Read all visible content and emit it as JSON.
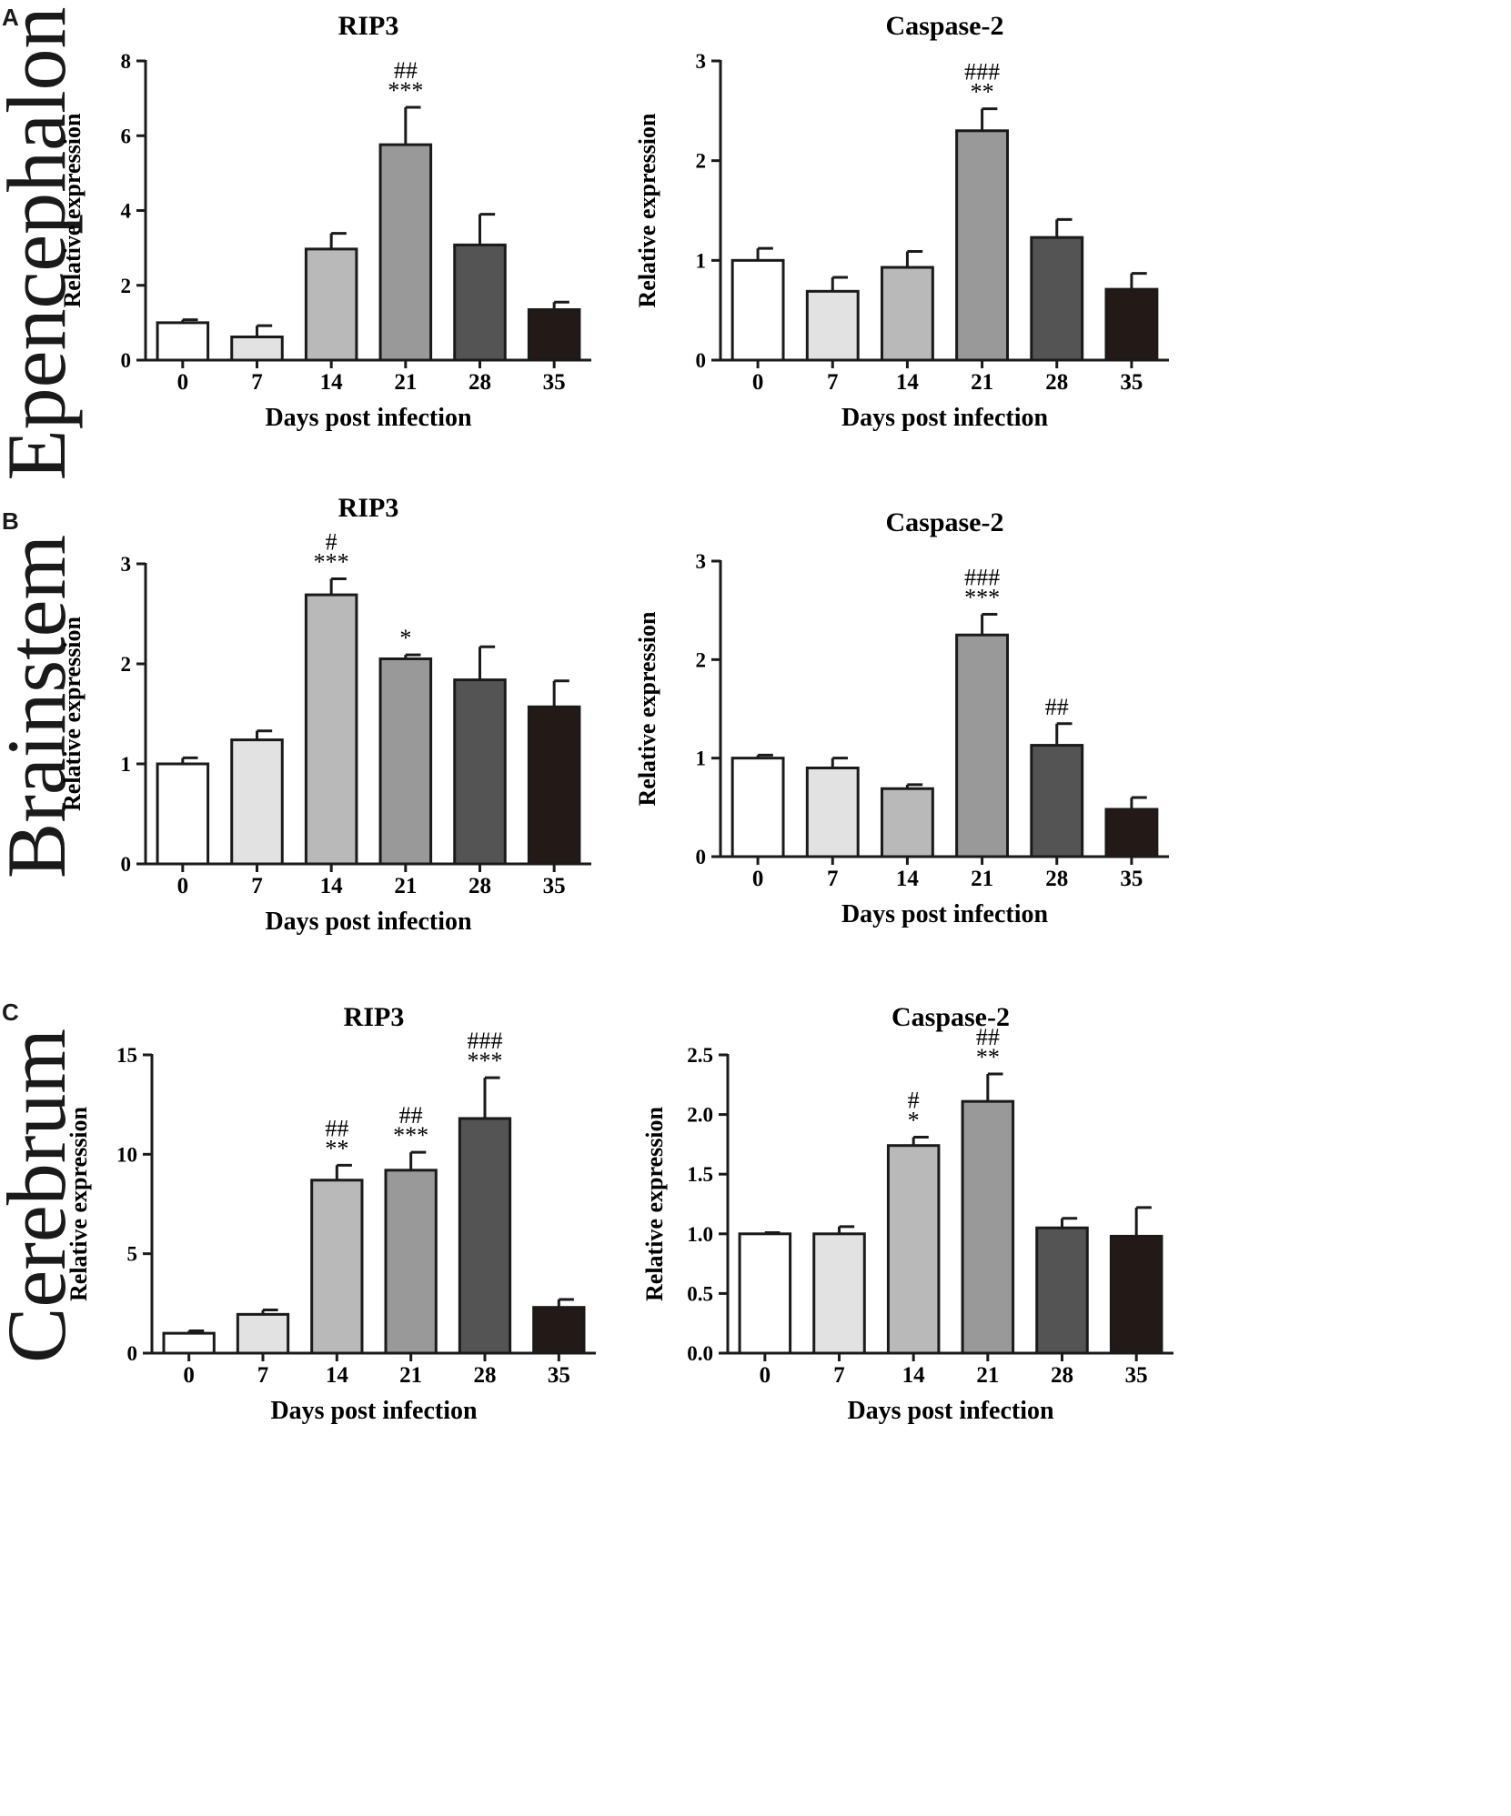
{
  "figure": {
    "panels": [
      {
        "letter": "A",
        "tissue": "Epencephalon"
      },
      {
        "letter": "B",
        "tissue": "Brainstem"
      },
      {
        "letter": "C",
        "tissue": "Cerebrum"
      }
    ]
  },
  "chart_data": [
    {
      "type": "bar",
      "panel": "A",
      "title": "RIP3",
      "xlabel": "Days post infection",
      "ylabel": "Relative expression",
      "categories": [
        "0",
        "7",
        "14",
        "21",
        "28",
        "35"
      ],
      "values": [
        1.0,
        0.62,
        2.97,
        5.76,
        3.08,
        1.35
      ],
      "errors": [
        0.08,
        0.3,
        0.42,
        1.0,
        0.82,
        0.2
      ],
      "annotations": [
        "",
        "",
        "",
        "##\n***",
        "",
        ""
      ],
      "bar_colors": [
        "#ffffff",
        "#e2e2e2",
        "#b9b9b9",
        "#999999",
        "#545454",
        "#231a18"
      ],
      "ylim": [
        0,
        8
      ],
      "yticks": [
        "0",
        "2",
        "4",
        "6",
        "8"
      ],
      "grid": false
    },
    {
      "type": "bar",
      "panel": "A",
      "title": "Caspase-2",
      "xlabel": "Days post infection",
      "ylabel": "Relative expression",
      "categories": [
        "0",
        "7",
        "14",
        "21",
        "28",
        "35"
      ],
      "values": [
        1.0,
        0.69,
        0.93,
        2.3,
        1.23,
        0.71
      ],
      "errors": [
        0.12,
        0.14,
        0.16,
        0.22,
        0.18,
        0.16
      ],
      "annotations": [
        "",
        "",
        "",
        "###\n**",
        "",
        ""
      ],
      "bar_colors": [
        "#ffffff",
        "#e2e2e2",
        "#b9b9b9",
        "#999999",
        "#545454",
        "#231a18"
      ],
      "ylim": [
        0,
        3
      ],
      "yticks": [
        "0",
        "1",
        "2",
        "3"
      ],
      "grid": false
    },
    {
      "type": "bar",
      "panel": "B",
      "title": "RIP3",
      "xlabel": "Days post infection",
      "ylabel": "Relative expression",
      "categories": [
        "0",
        "7",
        "14",
        "21",
        "28",
        "35"
      ],
      "values": [
        1.0,
        1.24,
        2.69,
        2.05,
        1.84,
        1.57
      ],
      "errors": [
        0.06,
        0.09,
        0.16,
        0.04,
        0.33,
        0.26
      ],
      "annotations": [
        "",
        "",
        "#\n***",
        "*",
        "",
        ""
      ],
      "bar_colors": [
        "#ffffff",
        "#e2e2e2",
        "#b9b9b9",
        "#999999",
        "#545454",
        "#231a18"
      ],
      "ylim": [
        0,
        3
      ],
      "yticks": [
        "0",
        "1",
        "2",
        "3"
      ],
      "grid": false
    },
    {
      "type": "bar",
      "panel": "B",
      "title": "Caspase-2",
      "xlabel": "Days post infection",
      "ylabel": "Relative expression",
      "categories": [
        "0",
        "7",
        "14",
        "21",
        "28",
        "35"
      ],
      "values": [
        1.0,
        0.9,
        0.69,
        2.25,
        1.13,
        0.48
      ],
      "errors": [
        0.03,
        0.1,
        0.04,
        0.21,
        0.22,
        0.12
      ],
      "annotations": [
        "",
        "",
        "",
        "###\n***",
        "##",
        ""
      ],
      "bar_colors": [
        "#ffffff",
        "#e2e2e2",
        "#b9b9b9",
        "#999999",
        "#545454",
        "#231a18"
      ],
      "ylim": [
        0,
        3
      ],
      "yticks": [
        "0",
        "1",
        "2",
        "3"
      ],
      "grid": false
    },
    {
      "type": "bar",
      "panel": "C",
      "title": "RIP3",
      "xlabel": "Days post infection",
      "ylabel": "Relative expression",
      "categories": [
        "0",
        "7",
        "14",
        "21",
        "28",
        "35"
      ],
      "values": [
        1.0,
        1.95,
        8.7,
        9.2,
        11.8,
        2.3
      ],
      "errors": [
        0.12,
        0.22,
        0.75,
        0.9,
        2.05,
        0.4
      ],
      "annotations": [
        "",
        "",
        "##\n**",
        "##\n***",
        "###\n***",
        ""
      ],
      "bar_colors": [
        "#ffffff",
        "#e2e2e2",
        "#b9b9b9",
        "#999999",
        "#545454",
        "#231a18"
      ],
      "ylim": [
        0,
        15
      ],
      "yticks": [
        "0",
        "5",
        "10",
        "15"
      ],
      "grid": false
    },
    {
      "type": "bar",
      "panel": "C",
      "title": "Caspase-2",
      "xlabel": "Days post infection",
      "ylabel": "Relative expression",
      "categories": [
        "0",
        "7",
        "14",
        "21",
        "28",
        "35"
      ],
      "values": [
        1.0,
        1.0,
        1.74,
        2.11,
        1.05,
        0.98
      ],
      "errors": [
        0.01,
        0.06,
        0.07,
        0.23,
        0.08,
        0.24
      ],
      "annotations": [
        "",
        "",
        "#\n*",
        "##\n**",
        "",
        ""
      ],
      "bar_colors": [
        "#ffffff",
        "#e2e2e2",
        "#b9b9b9",
        "#999999",
        "#545454",
        "#231a18"
      ],
      "ylim": [
        0,
        2.5
      ],
      "yticks": [
        "0.0",
        "0.5",
        "1.0",
        "1.5",
        "2.0",
        "2.5"
      ],
      "grid": false
    }
  ]
}
